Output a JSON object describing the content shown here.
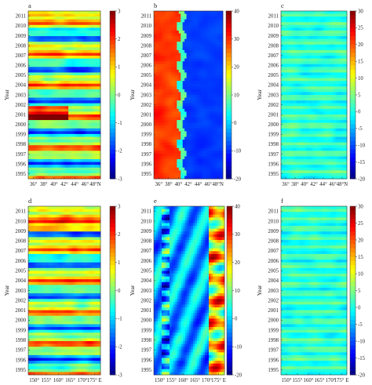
{
  "figure": {
    "colormap": [
      "#00007f",
      "#0000ff",
      "#007fff",
      "#00ffff",
      "#7fff7f",
      "#ffff00",
      "#ff7f00",
      "#ff0000",
      "#7f0000"
    ]
  },
  "chart_data": [
    {
      "type": "heatmap",
      "label": "a",
      "ylabel": "Year",
      "years": [
        "1995",
        "1996",
        "1997",
        "1998",
        "1999",
        "2000",
        "2001",
        "2002",
        "2003",
        "2004",
        "2005",
        "2006",
        "2007",
        "2008",
        "2009",
        "2010",
        "2011"
      ],
      "x_ticks": [
        "36°",
        "38°",
        "40°",
        "42°",
        "44°",
        "46°",
        "48°N"
      ],
      "colorbar": {
        "ticks": [
          "3",
          "2",
          "1",
          "0",
          "-1",
          "-2",
          "-3"
        ],
        "range": [
          -3,
          3
        ]
      },
      "pattern": "latitudinal_anomaly"
    },
    {
      "type": "heatmap",
      "label": "b",
      "ylabel": "Year",
      "years": [
        "1995",
        "1996",
        "1997",
        "1998",
        "1999",
        "2000",
        "2001",
        "2002",
        "2003",
        "2004",
        "2005",
        "2006",
        "2007",
        "2008",
        "2009",
        "2010",
        "2011"
      ],
      "x_ticks": [
        "36°",
        "38°",
        "40°",
        "42°",
        "44°",
        "46°",
        "48°N"
      ],
      "colorbar": {
        "ticks": [
          "40",
          "30",
          "20",
          "10",
          "0",
          "-10",
          "-20"
        ],
        "range": [
          -20,
          40
        ]
      },
      "pattern": "latitudinal_front"
    },
    {
      "type": "heatmap",
      "label": "c",
      "ylabel": "Year",
      "years": [
        "1995",
        "1996",
        "1997",
        "1998",
        "1999",
        "2000",
        "2001",
        "2002",
        "2003",
        "2004",
        "2005",
        "2006",
        "2007",
        "2008",
        "2009",
        "2010",
        "2011"
      ],
      "x_ticks": [
        "36°",
        "38°",
        "40°",
        "42°",
        "44°",
        "46°",
        "48°N"
      ],
      "colorbar": {
        "ticks": [
          "30",
          "25",
          "20",
          "15",
          "10",
          "5",
          "0",
          "-5",
          "-10",
          "-15",
          "-20"
        ],
        "range": [
          -20,
          30
        ]
      },
      "pattern": "latitudinal_weak"
    },
    {
      "type": "heatmap",
      "label": "d",
      "ylabel": "Year",
      "years": [
        "1995",
        "1996",
        "1997",
        "1998",
        "1999",
        "2000",
        "2001",
        "2002",
        "2003",
        "2004",
        "2005",
        "2006",
        "2007",
        "2008",
        "2009",
        "2010",
        "2011"
      ],
      "x_ticks": [
        "150°",
        "155°",
        "160°",
        "165°",
        "170°",
        "175° E"
      ],
      "colorbar": {
        "ticks": [
          "3",
          "2",
          "1",
          "0",
          "-1",
          "-2",
          "-3"
        ],
        "range": [
          -3,
          3
        ]
      },
      "pattern": "longitudinal_anomaly"
    },
    {
      "type": "heatmap",
      "label": "e",
      "ylabel": "Year",
      "years": [
        "1995",
        "1996",
        "1997",
        "1998",
        "1999",
        "2000",
        "2001",
        "2002",
        "2003",
        "2004",
        "2005",
        "2006",
        "2007",
        "2008",
        "2009",
        "2010",
        "2011"
      ],
      "x_ticks": [
        "150°",
        "155°",
        "160°",
        "165°",
        "170°",
        "175° E"
      ],
      "colorbar": {
        "ticks": [
          "40",
          "30",
          "20",
          "10",
          "0",
          "-10",
          "-20"
        ],
        "range": [
          -20,
          40
        ]
      },
      "pattern": "longitudinal_eddies"
    },
    {
      "type": "heatmap",
      "label": "f",
      "ylabel": "Year",
      "years": [
        "1995",
        "1996",
        "1997",
        "1998",
        "1999",
        "2000",
        "2001",
        "2002",
        "2003",
        "2004",
        "2005",
        "2006",
        "2007",
        "2008",
        "2009",
        "2010",
        "2011"
      ],
      "x_ticks": [
        "150°",
        "155°",
        "160°",
        "165°",
        "170°",
        "175° E"
      ],
      "colorbar": {
        "ticks": [
          "30",
          "25",
          "20",
          "15",
          "10",
          "5",
          "0",
          "-5",
          "-10",
          "-15",
          "-20"
        ],
        "range": [
          -20,
          30
        ]
      },
      "pattern": "longitudinal_weak"
    }
  ]
}
